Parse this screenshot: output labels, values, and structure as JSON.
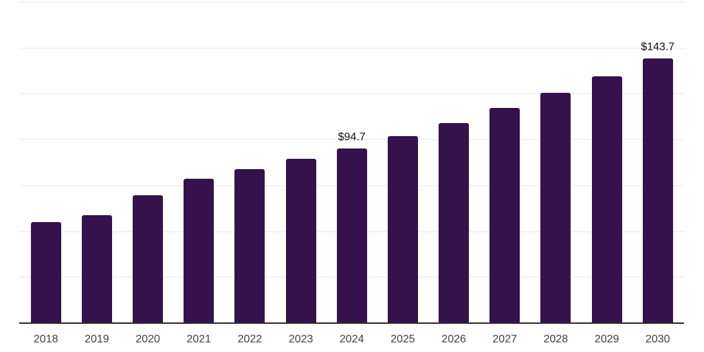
{
  "chart_data": {
    "type": "bar",
    "title": "",
    "xlabel": "",
    "ylabel": "",
    "categories": [
      "2018",
      "2019",
      "2020",
      "2021",
      "2022",
      "2023",
      "2024",
      "2025",
      "2026",
      "2027",
      "2028",
      "2029",
      "2030"
    ],
    "values": [
      54.8,
      58.6,
      69.4,
      78.3,
      83.5,
      89.2,
      94.7,
      101.5,
      108.8,
      116.7,
      125.1,
      134.1,
      143.7
    ],
    "annotations": [
      {
        "category": "2024",
        "text": "$94.7"
      },
      {
        "category": "2030",
        "text": "$143.7"
      }
    ],
    "ylim": [
      0,
      175
    ],
    "grid_step": 25,
    "grid": true,
    "legend": false,
    "y_axis_labels_visible": false,
    "colors": {
      "bar": "#35124B",
      "grid": "#f3f3f3",
      "axis": "#2b2b2b",
      "tick_label": "#404040",
      "value_label": "#111111",
      "background": "#ffffff"
    }
  }
}
